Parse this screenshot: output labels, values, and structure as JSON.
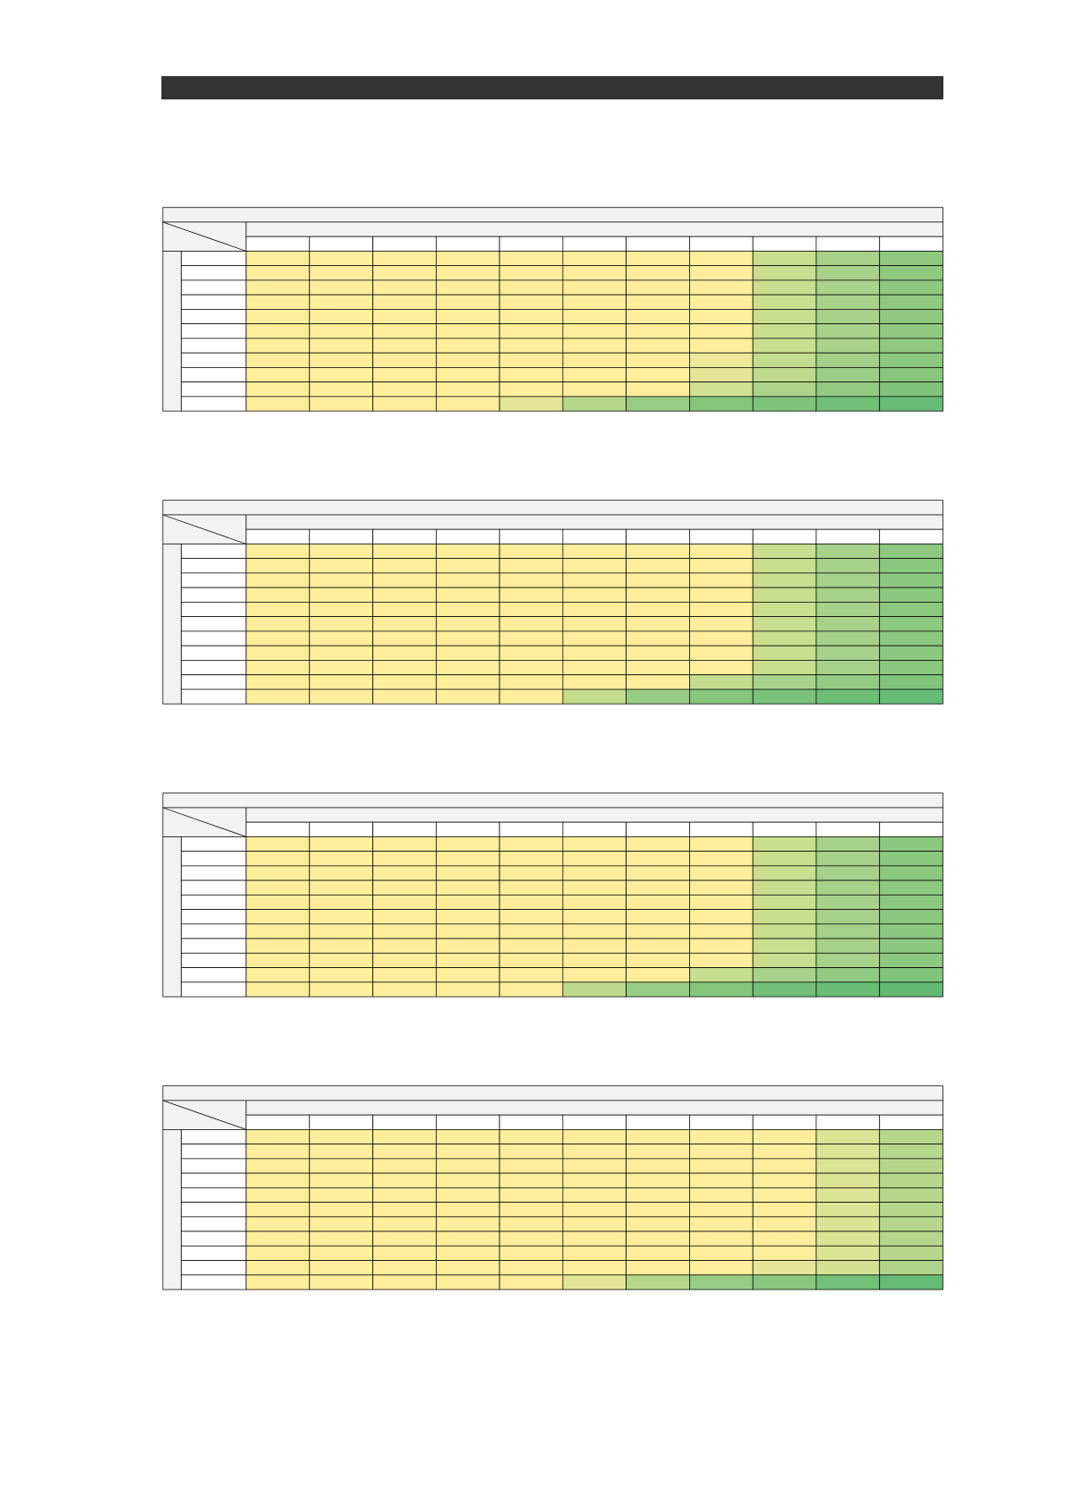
{
  "tables": [
    {
      "cell_colors": [
        [
          "#feee9c",
          "#feee9c",
          "#feee9c",
          "#feee9c",
          "#feee9c",
          "#feee9c",
          "#feee9c",
          "#feee9c",
          "#c9df8f",
          "#a8d28a",
          "#8fc980"
        ],
        [
          "#feee9c",
          "#feee9c",
          "#feee9c",
          "#feee9c",
          "#feee9c",
          "#feee9c",
          "#feee9c",
          "#feee9c",
          "#c9df8f",
          "#a8d28a",
          "#8fc980"
        ],
        [
          "#feee9c",
          "#feee9c",
          "#feee9c",
          "#feee9c",
          "#feee9c",
          "#feee9c",
          "#feee9c",
          "#feee9c",
          "#c9df8f",
          "#a8d28a",
          "#8fc980"
        ],
        [
          "#feee9c",
          "#feee9c",
          "#feee9c",
          "#feee9c",
          "#feee9c",
          "#feee9c",
          "#feee9c",
          "#feee9c",
          "#c9df8f",
          "#a8d28a",
          "#8fc980"
        ],
        [
          "#feee9c",
          "#feee9c",
          "#feee9c",
          "#feee9c",
          "#feee9c",
          "#feee9c",
          "#feee9c",
          "#feee9c",
          "#c9df8f",
          "#a8d28a",
          "#8fc980"
        ],
        [
          "#feee9c",
          "#feee9c",
          "#feee9c",
          "#feee9c",
          "#feee9c",
          "#feee9c",
          "#feee9c",
          "#feee9c",
          "#c9df8f",
          "#a8d28a",
          "#8fc980"
        ],
        [
          "#feee9c",
          "#feee9c",
          "#feee9c",
          "#feee9c",
          "#feee9c",
          "#feee9c",
          "#feee9c",
          "#feee9c",
          "#c9df8f",
          "#a8d28a",
          "#8fc980"
        ],
        [
          "#feee9c",
          "#feee9c",
          "#feee9c",
          "#feee9c",
          "#feee9c",
          "#feee9c",
          "#feee9c",
          "#eee99a",
          "#c4dc8e",
          "#a2cf88",
          "#8cc87f"
        ],
        [
          "#feee9c",
          "#feee9c",
          "#feee9c",
          "#feee9c",
          "#feee9c",
          "#feee9c",
          "#feee9c",
          "#e2e596",
          "#bcd98c",
          "#9ccd86",
          "#88c67d"
        ],
        [
          "#feee9c",
          "#feee9c",
          "#feee9c",
          "#feee9c",
          "#feee9c",
          "#feee9c",
          "#feee9c",
          "#cfe092",
          "#aed38a",
          "#93ca82",
          "#80c47b"
        ],
        [
          "#feee9c",
          "#feee9c",
          "#feee9c",
          "#feee9c",
          "#e2e596",
          "#b5d68b",
          "#98cc84",
          "#85c67c",
          "#7dc37a",
          "#72bf78",
          "#68bb76"
        ]
      ]
    },
    {
      "cell_colors": [
        [
          "#feee9c",
          "#feee9c",
          "#feee9c",
          "#feee9c",
          "#feee9c",
          "#feee9c",
          "#feee9c",
          "#feee9c",
          "#c9df8f",
          "#a5d18a",
          "#8cc87f"
        ],
        [
          "#feee9c",
          "#feee9c",
          "#feee9c",
          "#feee9c",
          "#feee9c",
          "#feee9c",
          "#feee9c",
          "#feee9c",
          "#c9df8f",
          "#a5d18a",
          "#8cc87f"
        ],
        [
          "#feee9c",
          "#feee9c",
          "#feee9c",
          "#feee9c",
          "#feee9c",
          "#feee9c",
          "#feee9c",
          "#feee9c",
          "#c9df8f",
          "#a5d18a",
          "#8cc87f"
        ],
        [
          "#feee9c",
          "#feee9c",
          "#feee9c",
          "#feee9c",
          "#feee9c",
          "#feee9c",
          "#feee9c",
          "#feee9c",
          "#c9df8f",
          "#a5d18a",
          "#8cc87f"
        ],
        [
          "#feee9c",
          "#feee9c",
          "#feee9c",
          "#feee9c",
          "#feee9c",
          "#feee9c",
          "#feee9c",
          "#feee9c",
          "#c9df8f",
          "#a5d18a",
          "#8cc87f"
        ],
        [
          "#feee9c",
          "#feee9c",
          "#feee9c",
          "#feee9c",
          "#feee9c",
          "#feee9c",
          "#feee9c",
          "#feee9c",
          "#c9df8f",
          "#a5d18a",
          "#8cc87f"
        ],
        [
          "#feee9c",
          "#feee9c",
          "#feee9c",
          "#feee9c",
          "#feee9c",
          "#feee9c",
          "#feee9c",
          "#feee9c",
          "#c9df8f",
          "#a5d18a",
          "#8cc87f"
        ],
        [
          "#feee9c",
          "#feee9c",
          "#feee9c",
          "#feee9c",
          "#feee9c",
          "#feee9c",
          "#feee9c",
          "#feee9c",
          "#c9df8f",
          "#a5d18a",
          "#8cc87f"
        ],
        [
          "#feee9c",
          "#feee9c",
          "#feee9c",
          "#feee9c",
          "#feee9c",
          "#feee9c",
          "#feee9c",
          "#feee9c",
          "#c9df8f",
          "#a5d18a",
          "#8cc87f"
        ],
        [
          "#feee9c",
          "#feee9c",
          "#feee9c",
          "#feee9c",
          "#feee9c",
          "#feee9c",
          "#feee9c",
          "#c4dc8e",
          "#a8d28a",
          "#93ca82",
          "#7fc47b"
        ],
        [
          "#feee9c",
          "#feee9c",
          "#feee9c",
          "#feee9c",
          "#feee9c",
          "#c4dc8e",
          "#98cc84",
          "#85c67c",
          "#7ac279",
          "#6ebd77",
          "#65ba75"
        ]
      ]
    },
    {
      "cell_colors": [
        [
          "#feee9c",
          "#feee9c",
          "#feee9c",
          "#feee9c",
          "#feee9c",
          "#feee9c",
          "#feee9c",
          "#feee9c",
          "#c9df8f",
          "#a5d18a",
          "#8cc87f"
        ],
        [
          "#feee9c",
          "#feee9c",
          "#feee9c",
          "#feee9c",
          "#feee9c",
          "#feee9c",
          "#feee9c",
          "#feee9c",
          "#c9df8f",
          "#a5d18a",
          "#8cc87f"
        ],
        [
          "#feee9c",
          "#feee9c",
          "#feee9c",
          "#feee9c",
          "#feee9c",
          "#feee9c",
          "#feee9c",
          "#feee9c",
          "#c9df8f",
          "#a5d18a",
          "#8cc87f"
        ],
        [
          "#feee9c",
          "#feee9c",
          "#feee9c",
          "#feee9c",
          "#feee9c",
          "#feee9c",
          "#feee9c",
          "#feee9c",
          "#c9df8f",
          "#a5d18a",
          "#8cc87f"
        ],
        [
          "#feee9c",
          "#feee9c",
          "#feee9c",
          "#feee9c",
          "#feee9c",
          "#feee9c",
          "#feee9c",
          "#feee9c",
          "#c9df8f",
          "#a5d18a",
          "#8cc87f"
        ],
        [
          "#feee9c",
          "#feee9c",
          "#feee9c",
          "#feee9c",
          "#feee9c",
          "#feee9c",
          "#feee9c",
          "#feee9c",
          "#c9df8f",
          "#a5d18a",
          "#8cc87f"
        ],
        [
          "#feee9c",
          "#feee9c",
          "#feee9c",
          "#feee9c",
          "#feee9c",
          "#feee9c",
          "#feee9c",
          "#feee9c",
          "#c9df8f",
          "#a5d18a",
          "#8cc87f"
        ],
        [
          "#feee9c",
          "#feee9c",
          "#feee9c",
          "#feee9c",
          "#feee9c",
          "#feee9c",
          "#feee9c",
          "#feee9c",
          "#c9df8f",
          "#a5d18a",
          "#8cc87f"
        ],
        [
          "#feee9c",
          "#feee9c",
          "#feee9c",
          "#feee9c",
          "#feee9c",
          "#feee9c",
          "#feee9c",
          "#feee9c",
          "#c9df8f",
          "#a5d18a",
          "#8cc87f"
        ],
        [
          "#feee9c",
          "#feee9c",
          "#feee9c",
          "#feee9c",
          "#feee9c",
          "#feee9c",
          "#feee9c",
          "#c8de8f",
          "#a8d28a",
          "#90c981",
          "#80c47b"
        ],
        [
          "#feee9c",
          "#feee9c",
          "#feee9c",
          "#feee9c",
          "#feee9c",
          "#bcd98c",
          "#98cc84",
          "#85c67c",
          "#72bf78",
          "#6abc76",
          "#63b974"
        ]
      ]
    },
    {
      "cell_colors": [
        [
          "#feee9c",
          "#feee9c",
          "#feee9c",
          "#feee9c",
          "#feee9c",
          "#feee9c",
          "#feee9c",
          "#feee9c",
          "#feee9c",
          "#dbe394",
          "#b6d78b"
        ],
        [
          "#feee9c",
          "#feee9c",
          "#feee9c",
          "#feee9c",
          "#feee9c",
          "#feee9c",
          "#feee9c",
          "#feee9c",
          "#feee9c",
          "#dbe394",
          "#b6d78b"
        ],
        [
          "#feee9c",
          "#feee9c",
          "#feee9c",
          "#feee9c",
          "#feee9c",
          "#feee9c",
          "#feee9c",
          "#feee9c",
          "#feee9c",
          "#dbe394",
          "#b6d78b"
        ],
        [
          "#feee9c",
          "#feee9c",
          "#feee9c",
          "#feee9c",
          "#feee9c",
          "#feee9c",
          "#feee9c",
          "#feee9c",
          "#feee9c",
          "#dbe394",
          "#b6d78b"
        ],
        [
          "#feee9c",
          "#feee9c",
          "#feee9c",
          "#feee9c",
          "#feee9c",
          "#feee9c",
          "#feee9c",
          "#feee9c",
          "#feee9c",
          "#dbe394",
          "#b6d78b"
        ],
        [
          "#feee9c",
          "#feee9c",
          "#feee9c",
          "#feee9c",
          "#feee9c",
          "#feee9c",
          "#feee9c",
          "#feee9c",
          "#feee9c",
          "#dbe394",
          "#b6d78b"
        ],
        [
          "#feee9c",
          "#feee9c",
          "#feee9c",
          "#feee9c",
          "#feee9c",
          "#feee9c",
          "#feee9c",
          "#feee9c",
          "#feee9c",
          "#dbe394",
          "#b6d78b"
        ],
        [
          "#feee9c",
          "#feee9c",
          "#feee9c",
          "#feee9c",
          "#feee9c",
          "#feee9c",
          "#feee9c",
          "#feee9c",
          "#feee9c",
          "#dbe394",
          "#b6d78b"
        ],
        [
          "#feee9c",
          "#feee9c",
          "#feee9c",
          "#feee9c",
          "#feee9c",
          "#feee9c",
          "#feee9c",
          "#feee9c",
          "#feee9c",
          "#dbe394",
          "#b6d78b"
        ],
        [
          "#feee9c",
          "#feee9c",
          "#feee9c",
          "#feee9c",
          "#feee9c",
          "#feee9c",
          "#feee9c",
          "#feee9c",
          "#e6e698",
          "#d4e193",
          "#afd38a"
        ],
        [
          "#feee9c",
          "#feee9c",
          "#feee9c",
          "#feee9c",
          "#feee9c",
          "#e2e596",
          "#b5d68b",
          "#98cc84",
          "#88c77d",
          "#72bf78",
          "#65ba75"
        ]
      ]
    }
  ]
}
